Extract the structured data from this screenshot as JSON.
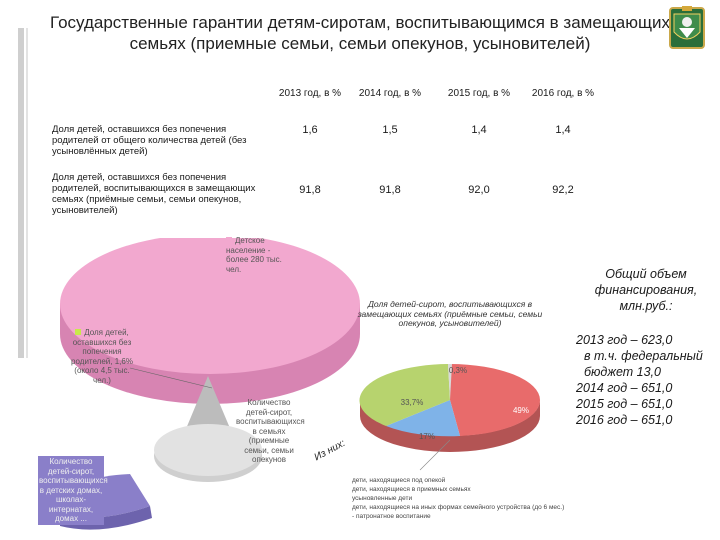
{
  "title": "Государственные гарантии детям-сиротам, воспитывающимся в замещающих семьях (приемные семьи, семьи опекунов, усыновителей)",
  "table": {
    "headers": [
      "2013 год, в %",
      "2014 год, в %",
      "2015 год, в %",
      "2016 год, в %"
    ],
    "rows": [
      {
        "label": "Доля детей, оставшихся без попечения родителей  от общего количества детей (без усыновлённых детей)",
        "values": [
          "1,6",
          "1,5",
          "1,4",
          "1,4"
        ]
      },
      {
        "label": "Доля детей, оставшихся без попечения родителей, воспитывающихся в замещающих семьях (приёмные семьи, семьи опекунов, усыновителей)",
        "values": [
          "91,8",
          "91,8",
          "92,0",
          "92,2"
        ]
      }
    ]
  },
  "financing": {
    "title": "Общий объем финансирования, млн.руб.:",
    "lines": [
      "2013 год – 623,0",
      "в т.ч. федеральный бюджет 13,0",
      "2014 год – 651,0",
      "2015 год – 651,0",
      "2016 год – 651,0"
    ]
  },
  "pie_main": {
    "labels": {
      "children": "Детское население - более 280 тыс. чел.",
      "orphans": "Доля детей, оставшихся без попечения родителей, 1,6% (около 4,5 тыс. чел.)",
      "foster": "Количество детей-сирот, воспитывающихся в семьях (приемные семьи, семьи опекунов",
      "institutions": "Количество детей-сирот, воспитывающихся в детских домах, школах-интернатах, домах ..."
    },
    "colors": {
      "children": "#f2a8cf",
      "orphans": "#c8e84a",
      "foster": "#d6d6d6",
      "institutions": "#8a7fc9"
    }
  },
  "pie_sub": {
    "title": "Доля детей-сирот, воспитывающихся в замещающих семьях (приёмные семьи, семьи опекунов, усыновителей)",
    "connector": "Из них:",
    "slices": [
      {
        "label": "49%",
        "value": 49,
        "color": "#e86b6b"
      },
      {
        "label": "33,7%",
        "value": 33.7,
        "color": "#b7d36e"
      },
      {
        "label": "17%",
        "value": 17,
        "color": "#7fb3e8"
      },
      {
        "label": "0,3%",
        "value": 0.3,
        "color": "#d9d9d9"
      }
    ],
    "legend": [
      "дети, находящиеся под опекой",
      "дети, находящиеся в приемных семьях",
      "усыновленные дети",
      "дети, находящиеся на иных формах семейного устройства (до 6 мес.) - патронатное воспитание"
    ]
  }
}
